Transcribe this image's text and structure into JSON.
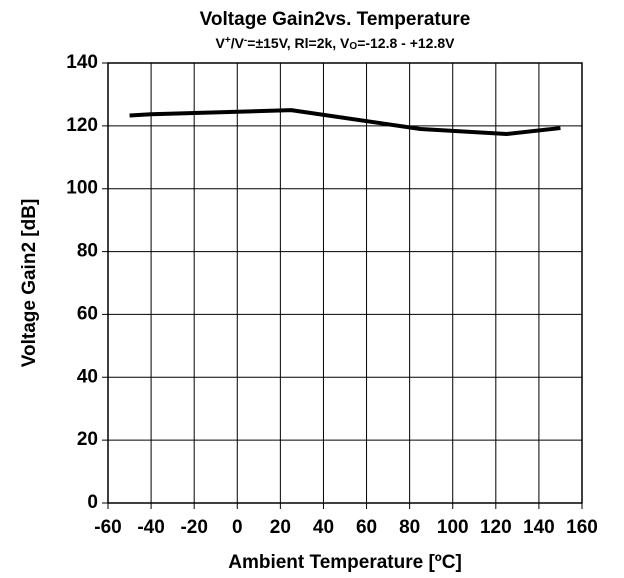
{
  "chart_data": {
    "type": "line",
    "title": "Voltage Gain2vs. Temperature",
    "subtitle": [
      "V",
      "+",
      "/V",
      "-",
      "=±15V, Rl=2k, V",
      "O",
      "=-12.8 - +12.8V"
    ],
    "subtitle_style": [
      "normal",
      "sup",
      "normal",
      "sup",
      "normal",
      "sub",
      "normal"
    ],
    "xlabel": "Ambient Temperature [ºC]",
    "ylabel": "Voltage Gain2 [dB]",
    "x": [
      -50,
      -40,
      25,
      85,
      125,
      150
    ],
    "series": [
      {
        "color": "#000000",
        "values": [
          123.3,
          123.7,
          125,
          119,
          117.4,
          119.3
        ]
      }
    ],
    "xlim": [
      -60,
      160
    ],
    "xticks": [
      -60,
      -40,
      -20,
      0,
      20,
      40,
      60,
      80,
      100,
      120,
      140,
      160
    ],
    "ylim": [
      0,
      140
    ],
    "yticks": [
      0,
      20,
      40,
      60,
      80,
      100,
      120,
      140
    ],
    "grid": true
  }
}
